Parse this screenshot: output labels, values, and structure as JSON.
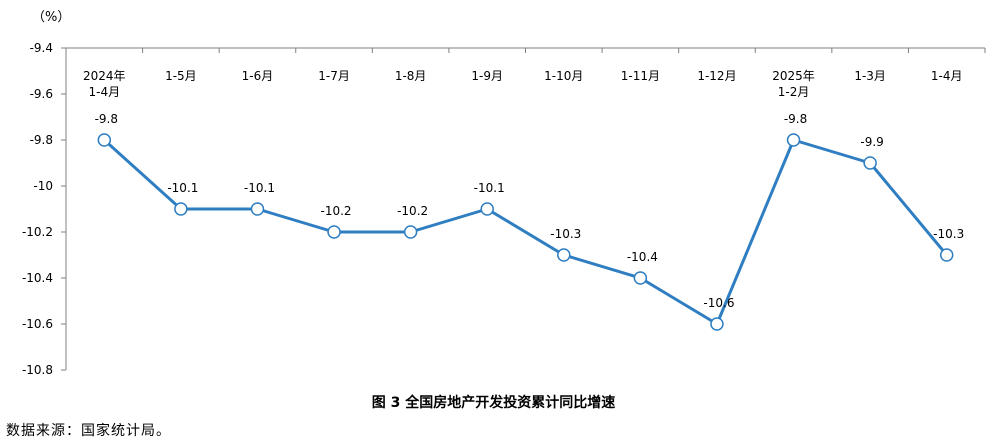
{
  "unit_label": "（%）",
  "caption": "图 3  全国房地产开发投资累计同比增速",
  "source_note": "数据来源：国家统计局。",
  "chart_data": {
    "type": "line",
    "title": "图 3  全国房地产开发投资累计同比增速",
    "categories": [
      [
        "2024年",
        "1-4月"
      ],
      [
        "1-5月"
      ],
      [
        "1-6月"
      ],
      [
        "1-7月"
      ],
      [
        "1-8月"
      ],
      [
        "1-9月"
      ],
      [
        "1-10月"
      ],
      [
        "1-11月"
      ],
      [
        "1-12月"
      ],
      [
        "2025年",
        "1-2月"
      ],
      [
        "1-3月"
      ],
      [
        "1-4月"
      ]
    ],
    "series": [
      {
        "values": [
          -9.8,
          -10.1,
          -10.1,
          -10.2,
          -10.2,
          -10.1,
          -10.3,
          -10.4,
          -10.6,
          -9.8,
          -9.9,
          -10.3
        ],
        "labels": [
          "-9.8",
          "-10.1",
          "-10.1",
          "-10.2",
          "-10.2",
          "-10.1",
          "-10.3",
          "-10.4",
          "-10.6",
          "-9.8",
          "-9.9",
          "-10.3"
        ],
        "color": "#2E7EC1"
      }
    ],
    "yticks": [
      "-9.4",
      "-9.6",
      "-9.8",
      "-10",
      "-10.2",
      "-10.4",
      "-10.6",
      "-10.8"
    ],
    "ylim": [
      -10.8,
      -9.4
    ],
    "xaxis_position": "top",
    "grid": false,
    "legend": "none"
  }
}
